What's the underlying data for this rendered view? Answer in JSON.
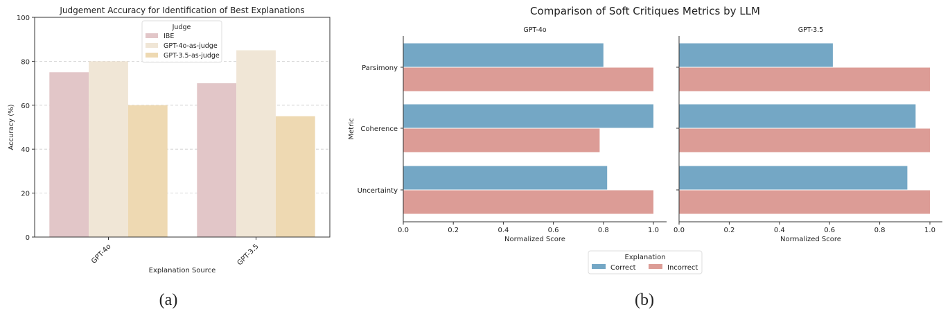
{
  "chart_data": [
    {
      "type": "bar",
      "title": "Judgement Accuracy for Identification of Best Explanations",
      "xlabel": "Explanation Source",
      "ylabel": "Accuracy (%)",
      "categories": [
        "GPT-4o",
        "GPT-3.5"
      ],
      "ylim": [
        0,
        100
      ],
      "yticks": [
        0,
        20,
        40,
        60,
        80,
        100
      ],
      "grid": "y dashed",
      "legend": {
        "title": "Judge",
        "placement": "top-center"
      },
      "series": [
        {
          "name": "IBE",
          "values": [
            75,
            70
          ],
          "color": "#e2c6c8"
        },
        {
          "name": "GPT-4o-as-judge",
          "values": [
            80,
            85
          ],
          "color": "#f0e6d6"
        },
        {
          "name": "GPT-3.5-as-judge",
          "values": [
            60,
            55
          ],
          "color": "#eed9b2"
        }
      ],
      "caption": "(a)"
    },
    {
      "type": "bar",
      "orientation": "horizontal",
      "title": "Comparison of Soft Critiques Metrics by LLM",
      "ylabel": "Metric",
      "categories": [
        "Parsimony",
        "Coherence",
        "Uncertainty"
      ],
      "xlim": [
        0,
        1.05
      ],
      "xticks": [
        "0.0",
        "0.2",
        "0.4",
        "0.6",
        "0.8",
        "1.0"
      ],
      "legend": {
        "title": "Explanation",
        "placement": "bottom-center"
      },
      "panels": [
        {
          "title": "GPT-4o",
          "xlabel": "Normalized Score",
          "series": [
            {
              "name": "Correct",
              "values": [
                0.8,
                1.0,
                0.815
              ]
            },
            {
              "name": "Incorrect",
              "values": [
                1.0,
                0.785,
                1.0
              ]
            }
          ]
        },
        {
          "title": "GPT-3.5",
          "xlabel": "Normalized Score",
          "series": [
            {
              "name": "Correct",
              "values": [
                0.613,
                0.943,
                0.91
              ]
            },
            {
              "name": "Incorrect",
              "values": [
                1.0,
                1.0,
                1.0
              ]
            }
          ]
        }
      ],
      "colors": {
        "Correct": "#74a7c5",
        "Incorrect": "#dc9c96"
      },
      "caption": "(b)"
    }
  ]
}
